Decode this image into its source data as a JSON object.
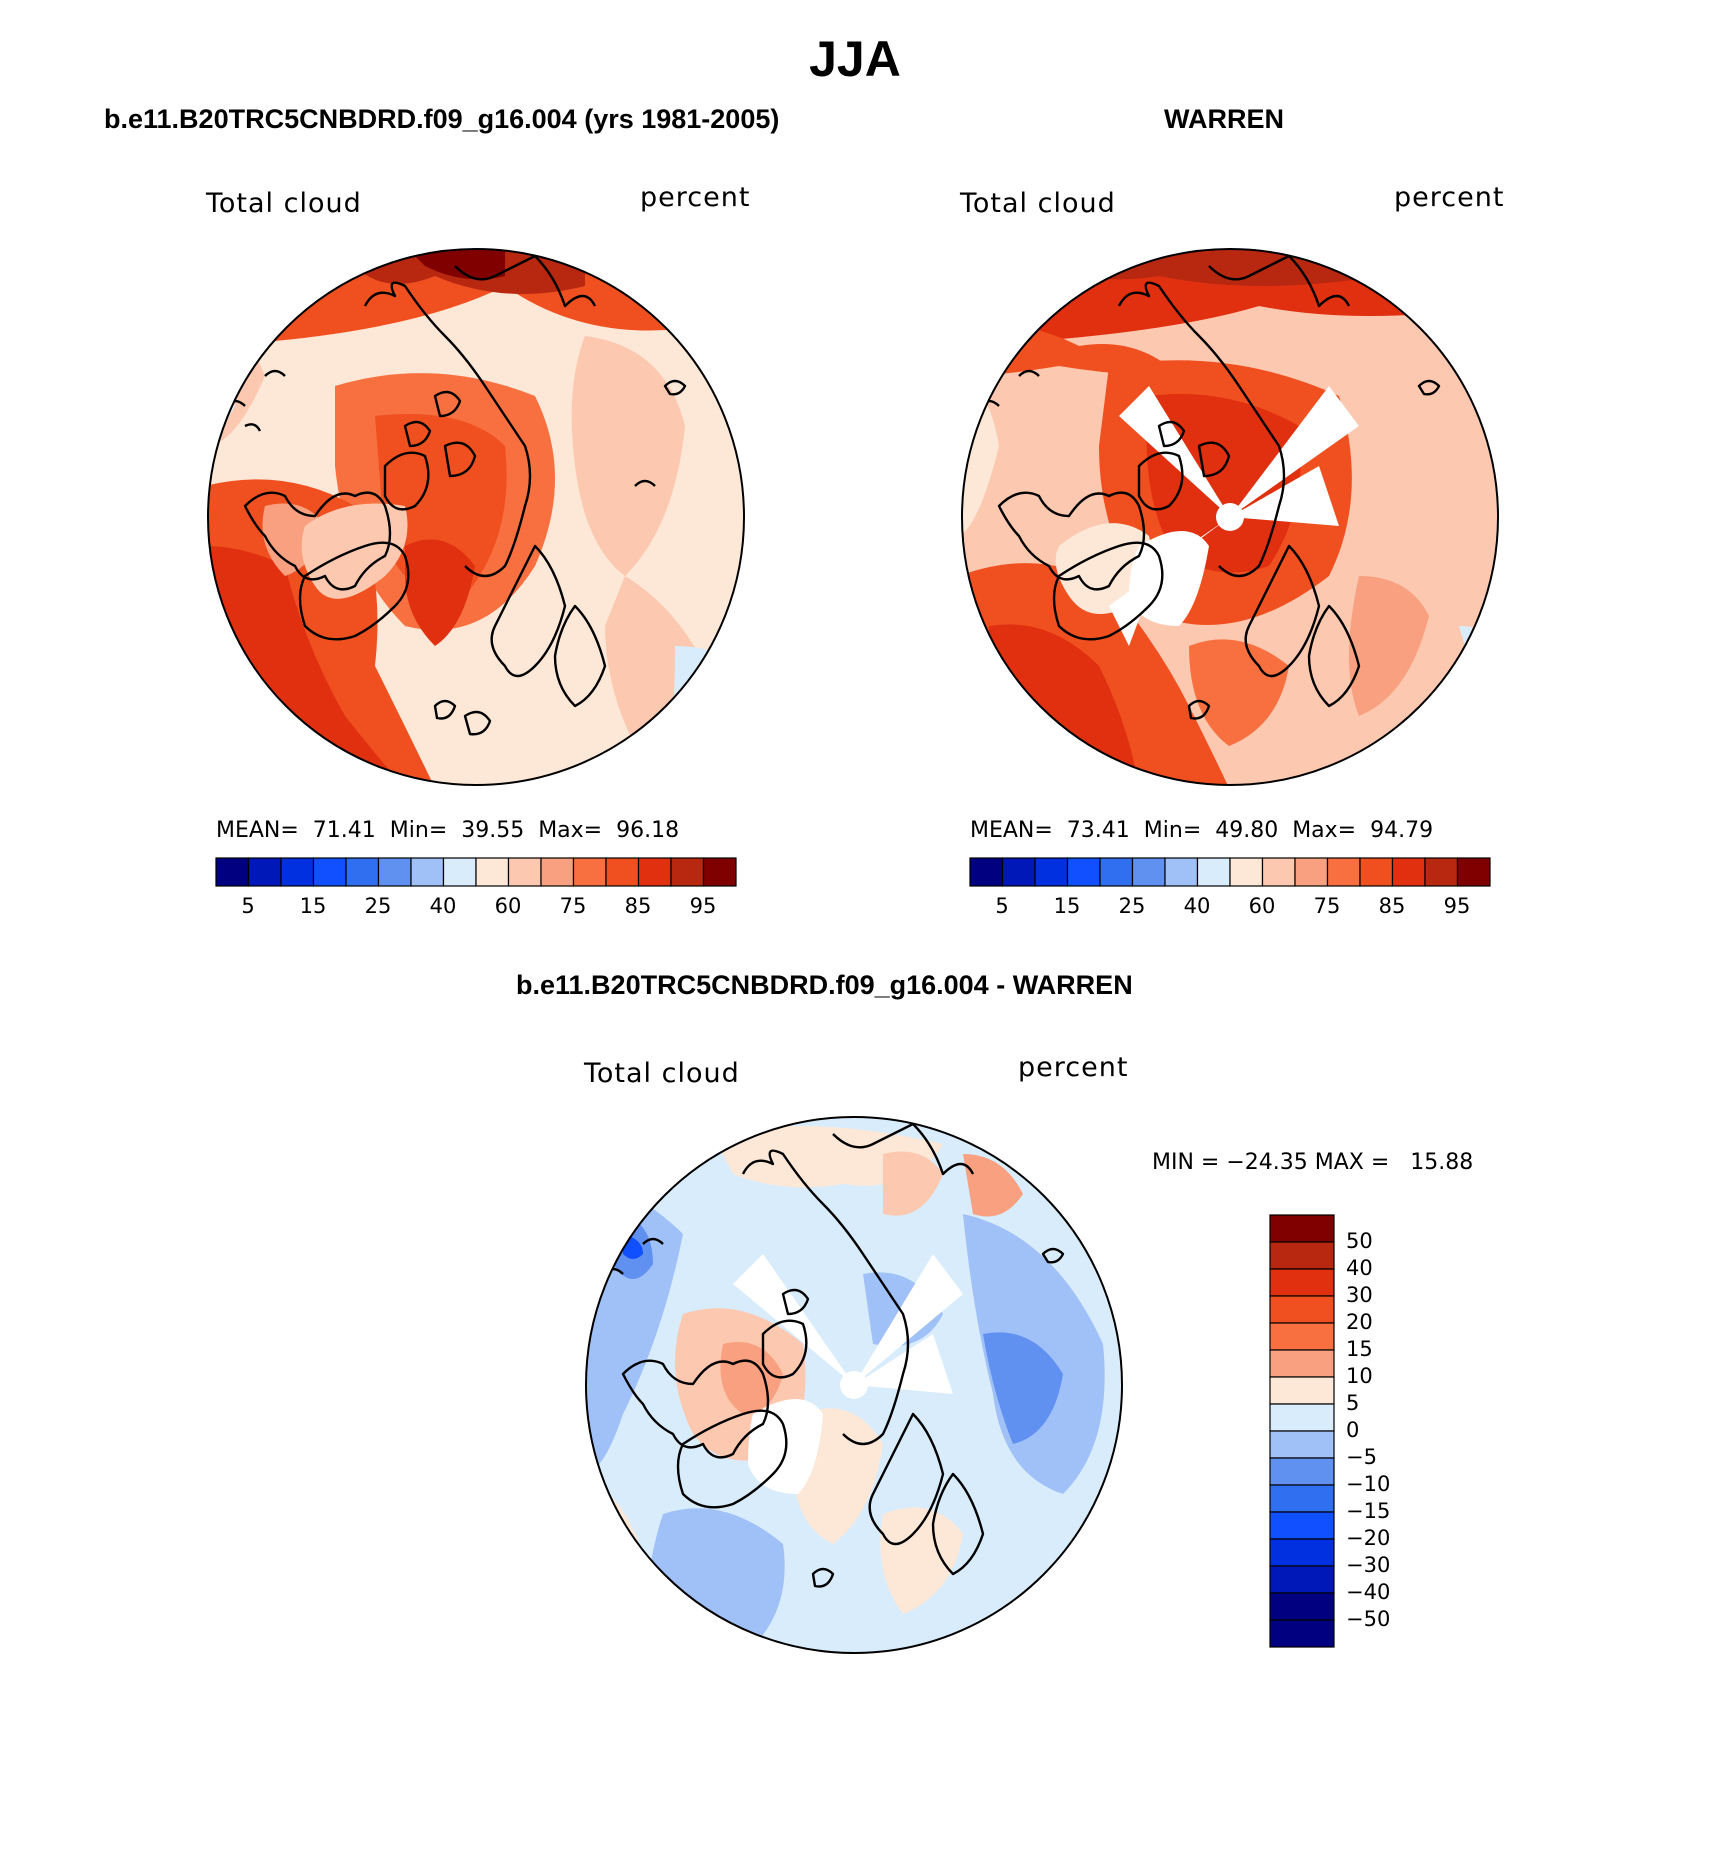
{
  "title": "JJA",
  "panels": [
    {
      "id": "model",
      "title": "b.e11.B20TRC5CNBDRD.f09_g16.004 (yrs 1981-2005)",
      "variable": "Total cloud",
      "units": "percent",
      "stats": "MEAN=  71.41  Min=  39.55  Max=  96.18",
      "colorbar_ticks": [
        "5",
        "15",
        "25",
        "40",
        "60",
        "75",
        "85",
        "95"
      ]
    },
    {
      "id": "obs",
      "title": "WARREN",
      "variable": "Total cloud",
      "units": "percent",
      "stats": "MEAN=  73.41  Min=  49.80  Max=  94.79",
      "colorbar_ticks": [
        "5",
        "15",
        "25",
        "40",
        "60",
        "75",
        "85",
        "95"
      ]
    },
    {
      "id": "diff",
      "title": "b.e11.B20TRC5CNBDRD.f09_g16.004 - WARREN",
      "variable": "Total cloud",
      "units": "percent",
      "stats": "MIN = −24.35 MAX =   15.88",
      "colorbar_ticks": [
        "50",
        "40",
        "30",
        "20",
        "15",
        "10",
        "5",
        "0",
        "−5",
        "−10",
        "−15",
        "−20",
        "−30",
        "−40",
        "−50"
      ]
    }
  ],
  "colors": {
    "abs_scale": [
      "#000080",
      "#0018b8",
      "#0030e0",
      "#1050ff",
      "#3070f0",
      "#6090f0",
      "#a0c0f8",
      "#d8ecfc",
      "#fde8d8",
      "#fcc8b0",
      "#f8a080",
      "#f87040",
      "#f05020",
      "#e03010",
      "#b82810",
      "#800000"
    ],
    "diff_scale": [
      "#800000",
      "#b82810",
      "#e03010",
      "#f05020",
      "#f87040",
      "#f8a080",
      "#fde8d8",
      "#d8ecfc",
      "#a0c0f8",
      "#6090f0",
      "#3070f0",
      "#1050ff",
      "#0030e0",
      "#0018b8",
      "#000080"
    ]
  }
}
